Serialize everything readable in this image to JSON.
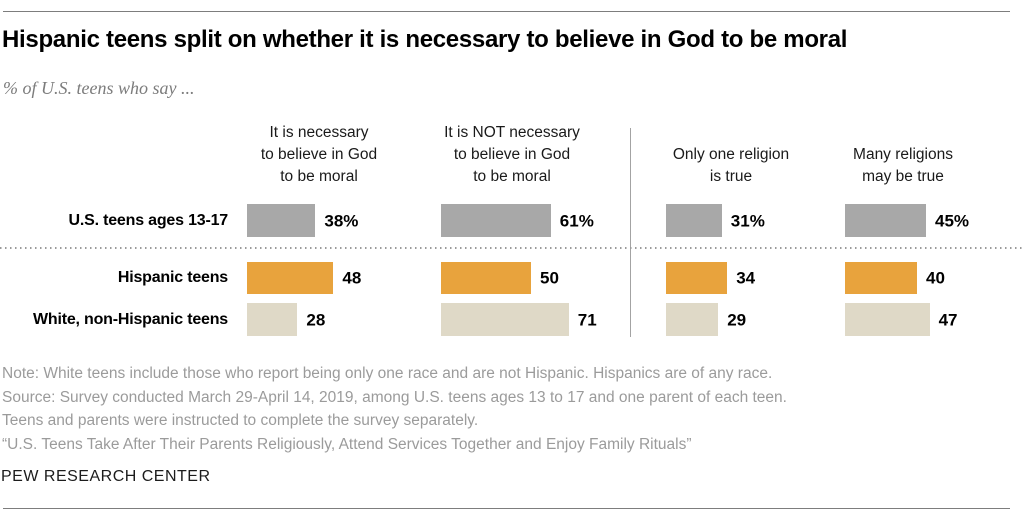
{
  "title": "Hispanic teens split on whether it is necessary to believe in God to be moral",
  "subtitle": "% of U.S. teens who say ...",
  "columns": [
    {
      "header": "It is necessary\nto believe in God\nto be moral"
    },
    {
      "header": "It is NOT necessary\nto believe in God\nto be moral"
    },
    {
      "header": "Only one religion\nis true"
    },
    {
      "header": "Many religions\nmay be true"
    }
  ],
  "rows": [
    {
      "label": "U.S. teens ages 13-17",
      "series": "gray",
      "values": [
        {
          "value": 38,
          "label": "38%"
        },
        {
          "value": 61,
          "label": "61%"
        },
        {
          "value": 31,
          "label": "31%"
        },
        {
          "value": 45,
          "label": "45%"
        }
      ]
    },
    {
      "label": "Hispanic teens",
      "series": "orange",
      "values": [
        {
          "value": 48,
          "label": "48"
        },
        {
          "value": 50,
          "label": "50"
        },
        {
          "value": 34,
          "label": "34"
        },
        {
          "value": 40,
          "label": "40"
        }
      ]
    },
    {
      "label": "White, non-Hispanic teens",
      "series": "tan",
      "values": [
        {
          "value": 28,
          "label": "28"
        },
        {
          "value": 71,
          "label": "71"
        },
        {
          "value": 29,
          "label": "29"
        },
        {
          "value": 47,
          "label": "47"
        }
      ]
    }
  ],
  "colors": {
    "gray": "#a8a8a8",
    "orange": "#e8a33d",
    "tan": "#dfd9c7"
  },
  "notes": [
    "Note: White teens include those who report being only one race and are not Hispanic. Hispanics are of any race.",
    "Source: Survey conducted March 29-April 14, 2019, among U.S. teens ages 13 to 17 and one parent of each teen.",
    "Teens and parents were instructed to complete the survey separately.",
    "“U.S. Teens Take After Their Parents Religiously, Attend Services Together and Enjoy Family Rituals”"
  ],
  "footer": "PEW RESEARCH CENTER",
  "chart_data": {
    "type": "bar",
    "orientation": "horizontal",
    "title": "Hispanic teens split on whether it is necessary to believe in God to be moral",
    "subtitle": "% of U.S. teens who say ...",
    "categories": [
      "It is necessary to believe in God to be moral",
      "It is NOT necessary to believe in God to be moral",
      "Only one religion is true",
      "Many religions may be true"
    ],
    "series": [
      {
        "name": "U.S. teens ages 13-17",
        "color": "#a8a8a8",
        "values": [
          38,
          61,
          31,
          45
        ]
      },
      {
        "name": "Hispanic teens",
        "color": "#e8a33d",
        "values": [
          48,
          50,
          34,
          40
        ]
      },
      {
        "name": "White, non-Hispanic teens",
        "color": "#dfd9c7",
        "values": [
          28,
          71,
          29,
          47
        ]
      }
    ],
    "unit": "%",
    "value_labels_shown": true,
    "xlim": [
      0,
      100
    ],
    "grid": false,
    "legend_position": "none",
    "group_divider_after_category": 2
  }
}
